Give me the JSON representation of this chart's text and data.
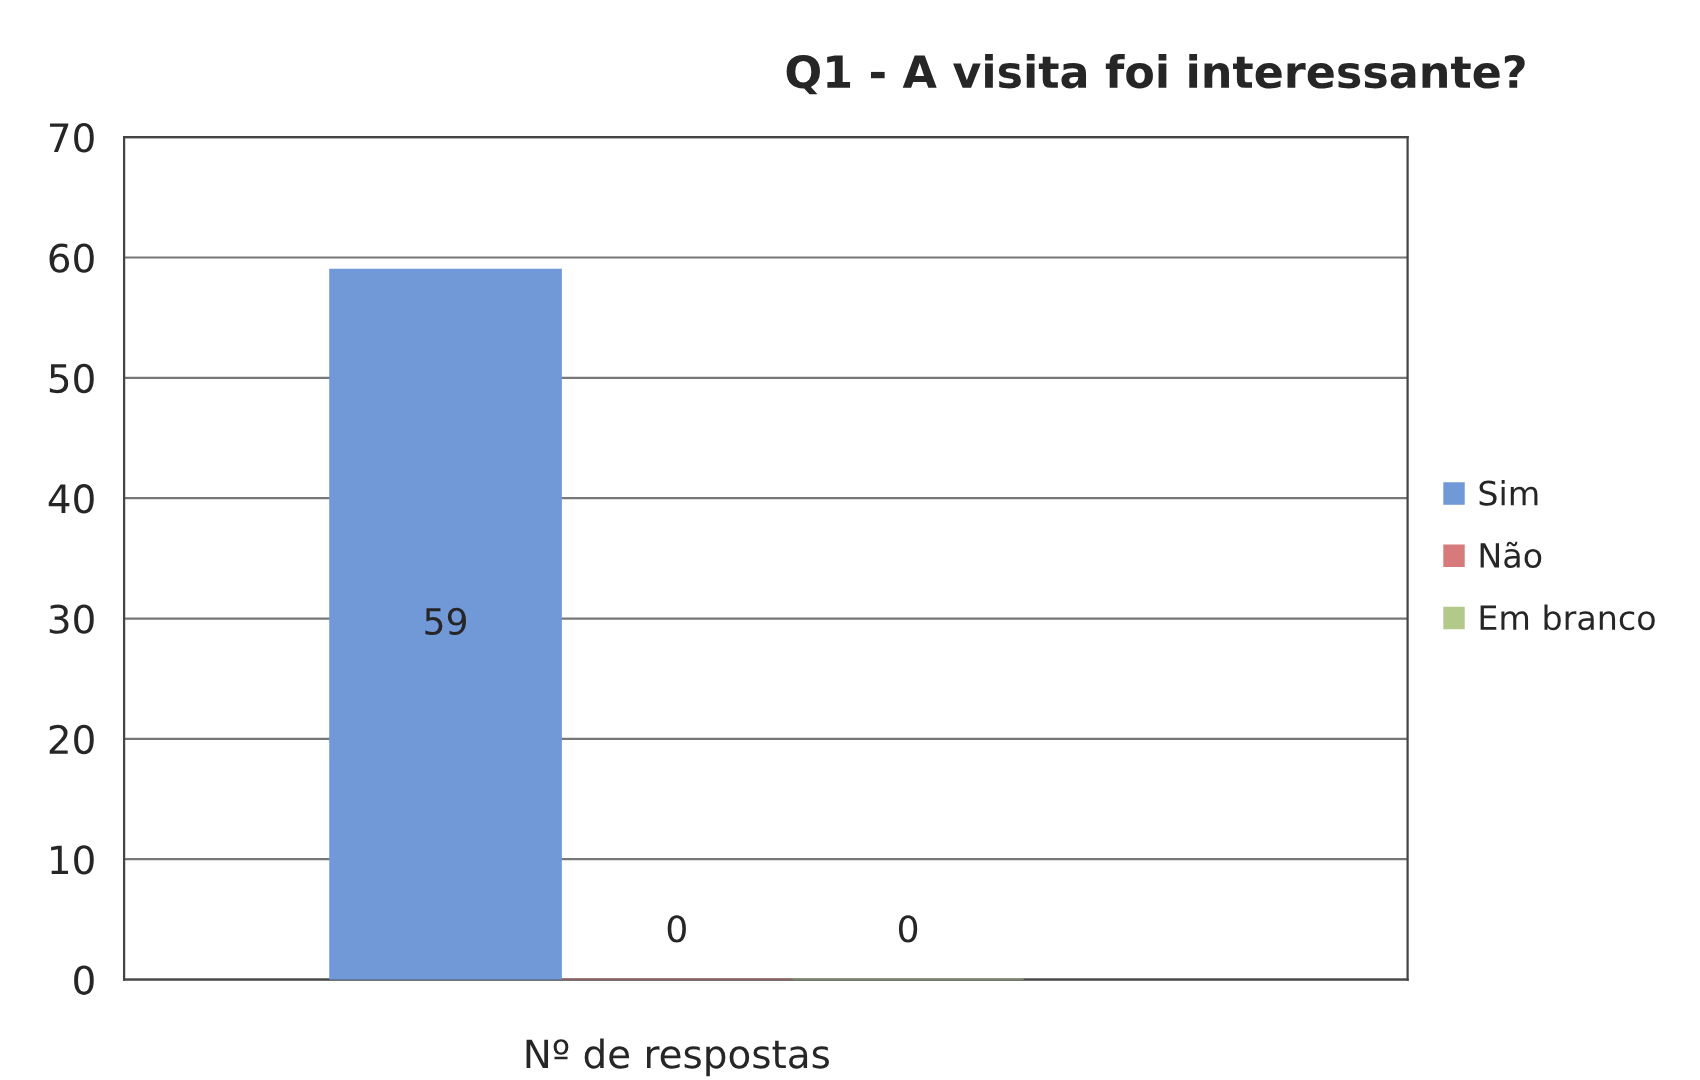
{
  "chart_data": {
    "type": "bar",
    "title": "Q1 - A visita foi interessante?",
    "categories": [
      "Nº de respostas"
    ],
    "series": [
      {
        "name": "Sim",
        "color": "#7199d8",
        "values": [
          59
        ]
      },
      {
        "name": "Não",
        "color": "#d77a7c",
        "values": [
          0
        ]
      },
      {
        "name": "Em branco",
        "color": "#b3c98a",
        "values": [
          0
        ]
      }
    ],
    "ylim": [
      0,
      70
    ],
    "yticks": [
      0,
      10,
      20,
      30,
      40,
      50,
      60,
      70
    ],
    "grid": "y",
    "legend": "right",
    "data_labels": true
  }
}
